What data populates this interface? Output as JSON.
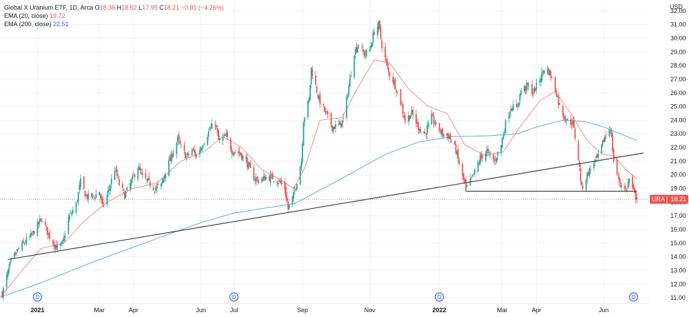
{
  "legend": {
    "title": "Global X Uranium ETF, 1D, Arca",
    "o_label": "O",
    "o": "18.36",
    "h_label": "H",
    "h": "18.62",
    "l_label": "L",
    "l": "17.95",
    "c_label": "C",
    "c": "18.21",
    "change": "−0.81 (−4.26%)",
    "ema20_label": "EMA (20, close)",
    "ema20_value": "19.72",
    "ema200_label": "EMA (200, close)",
    "ema200_value": "22.51"
  },
  "colors": {
    "up": "#26a69a",
    "down": "#ef5350",
    "ema20": "#f28b82",
    "ema200": "#64b5f6",
    "trendline": "#3c3f44",
    "grid": "#f0f3fa"
  },
  "chart_data": {
    "type": "candlestick",
    "currency": "USD",
    "symbol_tag": "URA",
    "last_price": 18.21,
    "ylim": [
      10.6,
      32.8
    ],
    "y_ticks": [
      "11.00",
      "12.00",
      "13.00",
      "14.00",
      "15.00",
      "16.00",
      "17.00",
      "18.00",
      "19.00",
      "20.00",
      "21.00",
      "22.00",
      "23.00",
      "24.00",
      "25.00",
      "26.00",
      "27.00",
      "28.00",
      "29.00",
      "30.00",
      "31.00",
      "32.00"
    ],
    "x_ticks": [
      {
        "date": "2021-01-04",
        "label": "2021",
        "bold": true
      },
      {
        "date": "2021-03-01",
        "label": "Mar"
      },
      {
        "date": "2021-04-01",
        "label": "Apr"
      },
      {
        "date": "2021-06-01",
        "label": "Jun"
      },
      {
        "date": "2021-07-01",
        "label": "Jul"
      },
      {
        "date": "2021-09-01",
        "label": "Sep"
      },
      {
        "date": "2021-11-01",
        "label": "Nov"
      },
      {
        "date": "2022-01-03",
        "label": "2022",
        "bold": true
      },
      {
        "date": "2022-03-01",
        "label": "Mar"
      },
      {
        "date": "2022-04-01",
        "label": "Apr"
      },
      {
        "date": "2022-06-01",
        "label": "Jun"
      }
    ],
    "dividend_markers": [
      {
        "date": "2021-01-04",
        "label": "D"
      },
      {
        "date": "2021-07-01",
        "label": "D"
      },
      {
        "date": "2022-01-03",
        "label": "D"
      },
      {
        "date": "2022-06-28",
        "label": "D"
      }
    ],
    "close_path": [
      [
        "2020-12-03",
        11.3
      ],
      [
        "2020-12-10",
        13.4
      ],
      [
        "2020-12-18",
        14.6
      ],
      [
        "2020-12-30",
        15.6
      ],
      [
        "2021-01-08",
        16.8
      ],
      [
        "2021-01-14",
        15.6
      ],
      [
        "2021-01-22",
        14.6
      ],
      [
        "2021-01-27",
        15.0
      ],
      [
        "2021-02-01",
        16.8
      ],
      [
        "2021-02-08",
        17.8
      ],
      [
        "2021-02-12",
        19.5
      ],
      [
        "2021-02-17",
        18.4
      ],
      [
        "2021-02-24",
        18.4
      ],
      [
        "2021-03-01",
        18.8
      ],
      [
        "2021-03-04",
        17.6
      ],
      [
        "2021-03-10",
        19.0
      ],
      [
        "2021-03-15",
        20.5
      ],
      [
        "2021-03-19",
        19.3
      ],
      [
        "2021-03-24",
        18.5
      ],
      [
        "2021-03-30",
        19.5
      ],
      [
        "2021-04-05",
        20.6
      ],
      [
        "2021-04-09",
        19.8
      ],
      [
        "2021-04-14",
        19.5
      ],
      [
        "2021-04-20",
        19.0
      ],
      [
        "2021-04-26",
        19.2
      ],
      [
        "2021-04-30",
        20.3
      ],
      [
        "2021-05-06",
        21.5
      ],
      [
        "2021-05-11",
        22.6
      ],
      [
        "2021-05-14",
        22.0
      ],
      [
        "2021-05-19",
        21.3
      ],
      [
        "2021-05-24",
        21.8
      ],
      [
        "2021-05-28",
        21.4
      ],
      [
        "2021-06-04",
        22.5
      ],
      [
        "2021-06-09",
        23.3
      ],
      [
        "2021-06-14",
        23.8
      ],
      [
        "2021-06-17",
        22.5
      ],
      [
        "2021-06-24",
        22.8
      ],
      [
        "2021-06-29",
        21.8
      ],
      [
        "2021-07-06",
        21.6
      ],
      [
        "2021-07-12",
        21.0
      ],
      [
        "2021-07-19",
        19.8
      ],
      [
        "2021-07-23",
        19.6
      ],
      [
        "2021-07-30",
        19.8
      ],
      [
        "2021-08-05",
        19.8
      ],
      [
        "2021-08-11",
        19.5
      ],
      [
        "2021-08-16",
        19.0
      ],
      [
        "2021-08-19",
        17.5
      ],
      [
        "2021-08-24",
        18.5
      ],
      [
        "2021-08-31",
        21.0
      ],
      [
        "2021-09-02",
        24.0
      ],
      [
        "2021-09-07",
        25.5
      ],
      [
        "2021-09-09",
        27.8
      ],
      [
        "2021-09-13",
        26.5
      ],
      [
        "2021-09-16",
        25.5
      ],
      [
        "2021-09-22",
        24.5
      ],
      [
        "2021-09-28",
        23.5
      ],
      [
        "2021-10-04",
        23.6
      ],
      [
        "2021-10-08",
        24.0
      ],
      [
        "2021-10-13",
        26.5
      ],
      [
        "2021-10-18",
        29.0
      ],
      [
        "2021-10-22",
        29.6
      ],
      [
        "2021-10-27",
        28.8
      ],
      [
        "2021-11-01",
        29.2
      ],
      [
        "2021-11-05",
        30.5
      ],
      [
        "2021-11-09",
        31.0
      ],
      [
        "2021-11-12",
        29.5
      ],
      [
        "2021-11-18",
        27.5
      ],
      [
        "2021-11-23",
        26.8
      ],
      [
        "2021-11-29",
        25.3
      ],
      [
        "2021-12-03",
        24.0
      ],
      [
        "2021-12-09",
        24.5
      ],
      [
        "2021-12-15",
        23.5
      ],
      [
        "2021-12-21",
        23.0
      ],
      [
        "2021-12-27",
        24.2
      ],
      [
        "2021-12-31",
        23.6
      ],
      [
        "2022-01-06",
        23.0
      ],
      [
        "2022-01-12",
        22.8
      ],
      [
        "2022-01-18",
        21.8
      ],
      [
        "2022-01-24",
        19.8
      ],
      [
        "2022-01-28",
        19.0
      ],
      [
        "2022-02-03",
        20.0
      ],
      [
        "2022-02-09",
        21.2
      ],
      [
        "2022-02-15",
        21.7
      ],
      [
        "2022-02-22",
        21.0
      ],
      [
        "2022-02-28",
        22.2
      ],
      [
        "2022-03-04",
        23.8
      ],
      [
        "2022-03-09",
        25.0
      ],
      [
        "2022-03-14",
        24.8
      ],
      [
        "2022-03-18",
        26.2
      ],
      [
        "2022-03-24",
        26.5
      ],
      [
        "2022-03-29",
        26.0
      ],
      [
        "2022-04-04",
        27.0
      ],
      [
        "2022-04-08",
        27.8
      ],
      [
        "2022-04-13",
        27.5
      ],
      [
        "2022-04-19",
        26.0
      ],
      [
        "2022-04-22",
        25.0
      ],
      [
        "2022-04-28",
        24.0
      ],
      [
        "2022-05-04",
        23.8
      ],
      [
        "2022-05-09",
        21.2
      ],
      [
        "2022-05-12",
        19.0
      ],
      [
        "2022-05-17",
        20.0
      ],
      [
        "2022-05-23",
        20.9
      ],
      [
        "2022-05-27",
        21.3
      ],
      [
        "2022-06-02",
        22.8
      ],
      [
        "2022-06-07",
        23.5
      ],
      [
        "2022-06-10",
        21.0
      ],
      [
        "2022-06-15",
        19.5
      ],
      [
        "2022-06-21",
        18.8
      ],
      [
        "2022-06-24",
        19.7
      ],
      [
        "2022-06-29",
        18.5
      ],
      [
        "2022-07-01",
        18.21
      ]
    ],
    "ema20_path": [
      [
        "2020-12-03",
        11.2
      ],
      [
        "2020-12-21",
        13.0
      ],
      [
        "2021-01-07",
        14.6
      ],
      [
        "2021-01-28",
        15.0
      ],
      [
        "2021-02-15",
        16.6
      ],
      [
        "2021-03-08",
        18.0
      ],
      [
        "2021-03-31",
        19.0
      ],
      [
        "2021-04-22",
        19.4
      ],
      [
        "2021-05-14",
        21.0
      ],
      [
        "2021-06-04",
        21.7
      ],
      [
        "2021-06-21",
        22.8
      ],
      [
        "2021-07-08",
        22.0
      ],
      [
        "2021-07-26",
        20.4
      ],
      [
        "2021-08-13",
        19.6
      ],
      [
        "2021-08-24",
        19.0
      ],
      [
        "2021-09-03",
        20.5
      ],
      [
        "2021-09-17",
        24.0
      ],
      [
        "2021-10-07",
        24.2
      ],
      [
        "2021-10-22",
        26.5
      ],
      [
        "2021-11-05",
        28.4
      ],
      [
        "2021-11-19",
        28.2
      ],
      [
        "2021-12-06",
        26.3
      ],
      [
        "2021-12-24",
        25.0
      ],
      [
        "2022-01-10",
        24.5
      ],
      [
        "2022-01-26",
        22.2
      ],
      [
        "2022-02-14",
        21.4
      ],
      [
        "2022-03-02",
        21.7
      ],
      [
        "2022-03-17",
        23.5
      ],
      [
        "2022-04-05",
        25.5
      ],
      [
        "2022-04-18",
        26.1
      ],
      [
        "2022-05-02",
        24.5
      ],
      [
        "2022-05-17",
        22.5
      ],
      [
        "2022-05-31",
        21.5
      ],
      [
        "2022-06-10",
        21.4
      ],
      [
        "2022-06-22",
        20.3
      ],
      [
        "2022-07-01",
        19.72
      ]
    ],
    "ema200_path": [
      [
        "2020-12-01",
        11.05
      ],
      [
        "2021-01-01",
        11.9
      ],
      [
        "2021-02-01",
        12.9
      ],
      [
        "2021-03-01",
        13.8
      ],
      [
        "2021-04-01",
        14.7
      ],
      [
        "2021-05-01",
        15.6
      ],
      [
        "2021-06-01",
        16.5
      ],
      [
        "2021-07-01",
        17.2
      ],
      [
        "2021-08-01",
        17.6
      ],
      [
        "2021-08-25",
        17.9
      ],
      [
        "2021-09-15",
        18.8
      ],
      [
        "2021-10-15",
        20.1
      ],
      [
        "2021-11-15",
        21.5
      ],
      [
        "2021-12-15",
        22.4
      ],
      [
        "2022-01-15",
        22.8
      ],
      [
        "2022-02-15",
        22.85
      ],
      [
        "2022-03-15",
        23.0
      ],
      [
        "2022-04-01",
        23.5
      ],
      [
        "2022-04-25",
        24.0
      ],
      [
        "2022-05-15",
        23.9
      ],
      [
        "2022-06-01",
        23.5
      ],
      [
        "2022-07-01",
        22.51
      ]
    ],
    "annotations": [
      {
        "type": "trendline",
        "from": [
          "2020-12-08",
          13.8
        ],
        "to": [
          "2022-07-07",
          21.6
        ]
      },
      {
        "type": "horizontal",
        "from": [
          "2022-01-27",
          18.8
        ],
        "to": [
          "2022-07-01",
          18.8
        ]
      }
    ],
    "grid": true
  }
}
